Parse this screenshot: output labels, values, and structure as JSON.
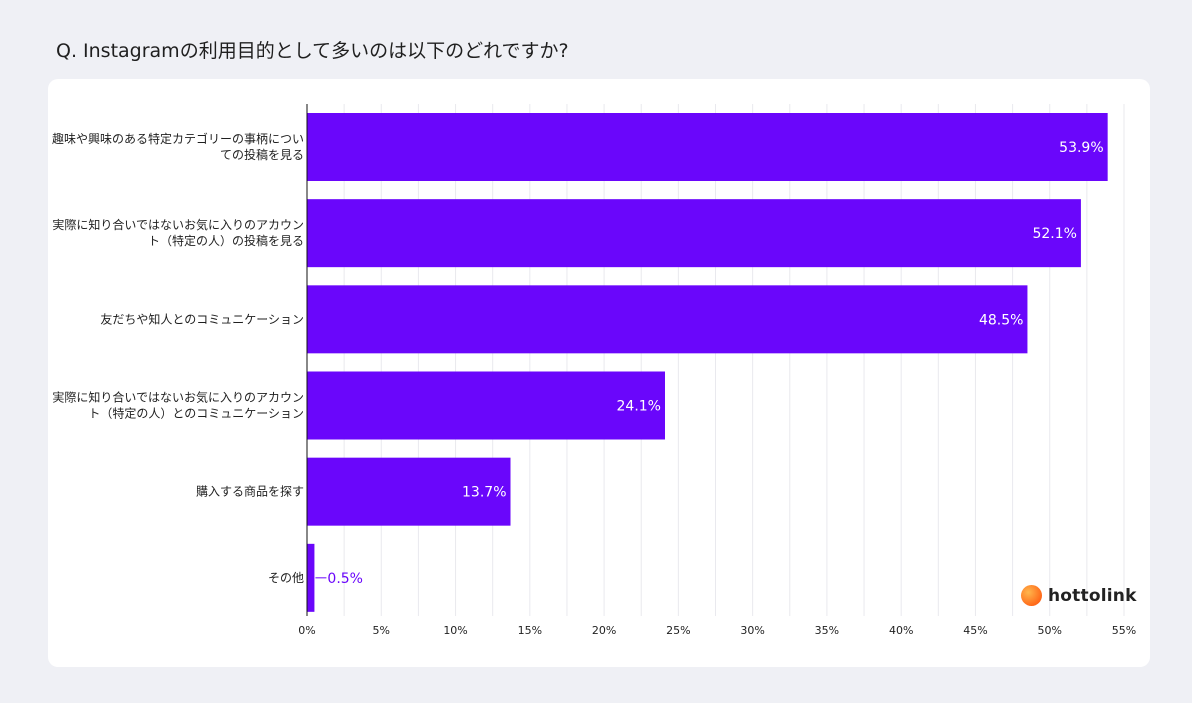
{
  "title": "Q. Instagramの利用目的として多いのは以下のどれですか?",
  "brand": "hottolink",
  "colors": {
    "bar": "#6a06fb",
    "label_inside": "#ffffff",
    "label_outside": "#6a06fb"
  },
  "chart_data": {
    "type": "bar",
    "orientation": "horizontal",
    "title": "Q. Instagramの利用目的として多いのは以下のどれですか?",
    "categories": [
      [
        "趣味や興味のある特定カテゴリーの事柄につい",
        "ての投稿を見る"
      ],
      [
        "実際に知り合いではないお気に入りのアカウン",
        "ト（特定の人）の投稿を見る"
      ],
      [
        "友だちや知人とのコミュニケーション"
      ],
      [
        "実際に知り合いではないお気に入りのアカウン",
        "ト（特定の人）とのコミュニケーション"
      ],
      [
        "購入する商品を探す"
      ],
      [
        "その他"
      ]
    ],
    "values": [
      53.9,
      52.1,
      48.5,
      24.1,
      13.7,
      0.5
    ],
    "value_labels": [
      "53.9%",
      "52.1%",
      "48.5%",
      "24.1%",
      "13.7%",
      "0.5%"
    ],
    "xlim": [
      0,
      55
    ],
    "xticks": [
      0,
      5,
      10,
      15,
      20,
      25,
      30,
      35,
      40,
      45,
      50,
      55
    ],
    "xtick_labels": [
      "0%",
      "5%",
      "10%",
      "15%",
      "20%",
      "25%",
      "30%",
      "35%",
      "40%",
      "45%",
      "50%",
      "55%"
    ],
    "grid": true
  }
}
